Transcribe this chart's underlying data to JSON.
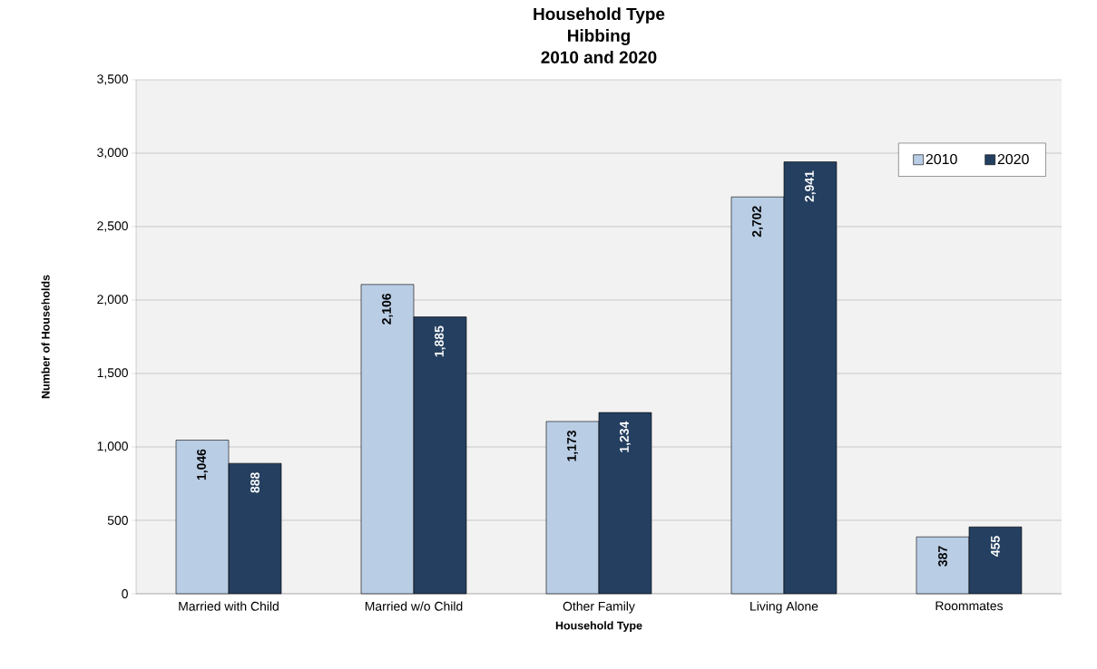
{
  "chart_data": {
    "type": "bar",
    "title": "Household Type Hibbing 2010 and 2020",
    "xlabel": "Household Type",
    "ylabel": "Number of Households",
    "categories": [
      "Married with Child",
      "Married w/o Child",
      "Other Family",
      "Living Alone",
      "Roommates"
    ],
    "series": [
      {
        "name": "2010",
        "color": "#b9cde5",
        "values": [
          1046,
          2106,
          1173,
          2702,
          387
        ],
        "value_labels": [
          "1,046",
          "2,106",
          "1,173",
          "2,702",
          "387"
        ]
      },
      {
        "name": "2020",
        "color": "#243f60",
        "values": [
          888,
          1885,
          1234,
          2941,
          455
        ],
        "value_labels": [
          "888",
          "1,885",
          "1,234",
          "2,941",
          "455"
        ]
      }
    ],
    "ylim": [
      0,
      3500
    ],
    "yticks": [
      {
        "value": 0,
        "label": "0"
      },
      {
        "value": 500,
        "label": "500"
      },
      {
        "value": 1000,
        "label": "1,000"
      },
      {
        "value": 1500,
        "label": "1,500"
      },
      {
        "value": 2000,
        "label": "2,000"
      },
      {
        "value": 2500,
        "label": "2,500"
      },
      {
        "value": 3000,
        "label": "3,000"
      },
      {
        "value": 3500,
        "label": "3,500"
      }
    ],
    "grid": "y",
    "legend": "top right"
  }
}
